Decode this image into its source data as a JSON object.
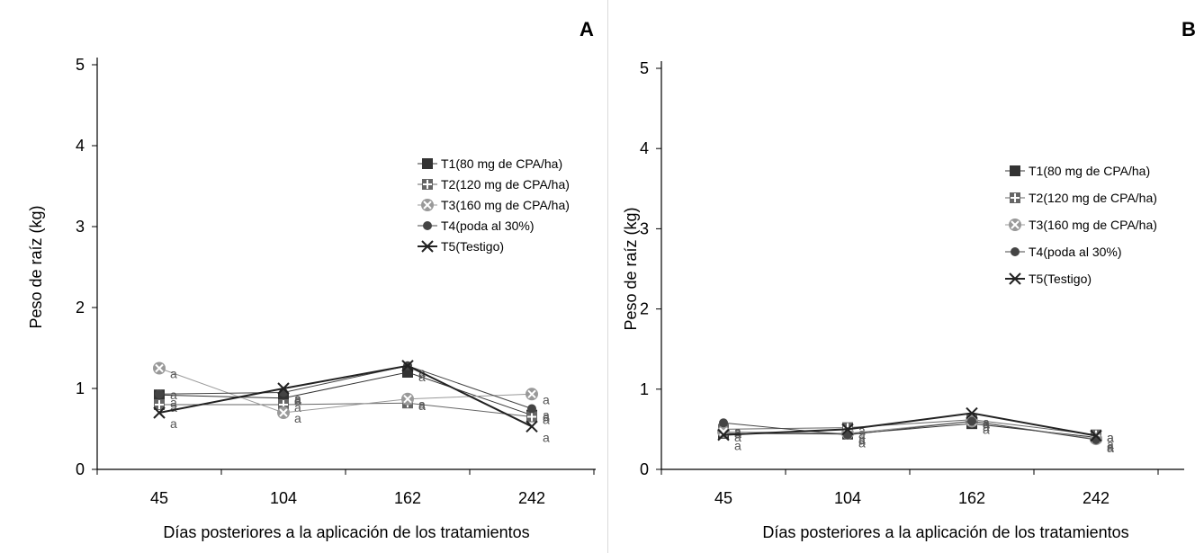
{
  "chart_data": [
    {
      "type": "line",
      "panel_label": "A",
      "xlabel": "Días posteriores a la aplicación de los tratamientos",
      "ylabel": "Peso de raíz  (kg)",
      "categories": [
        "45",
        "104",
        "162",
        "242"
      ],
      "ylim": [
        0,
        5
      ],
      "yticks": [
        "0",
        "1",
        "2",
        "3",
        "4",
        "5"
      ],
      "grid": false,
      "legend_position": "right",
      "series": [
        {
          "name": "T1(80 mg de CPA/ha)",
          "marker": "square",
          "values": [
            0.92,
            0.88,
            1.2,
            0.67
          ],
          "letters": [
            "a",
            "a",
            "a",
            "a"
          ]
        },
        {
          "name": "T2(120 mg de CPA/ha)",
          "marker": "plus-square",
          "values": [
            0.8,
            0.8,
            0.82,
            0.65
          ],
          "letters": [
            "a",
            "a",
            "a",
            "a"
          ]
        },
        {
          "name": "T3(160 mg de CPA/ha)",
          "marker": "x-circle",
          "values": [
            1.25,
            0.7,
            0.87,
            0.93
          ],
          "letters": [
            "a",
            "a",
            "a",
            "a"
          ]
        },
        {
          "name": "T4(poda al 30%)",
          "marker": "dot",
          "values": [
            0.93,
            0.95,
            1.28,
            0.75
          ],
          "letters": [
            "a",
            "a",
            "a",
            "a"
          ]
        },
        {
          "name": "T5(Testigo)",
          "marker": "cross",
          "values": [
            0.7,
            1.0,
            1.28,
            0.53
          ],
          "letters": [
            "a",
            "a",
            "a",
            "a"
          ]
        }
      ]
    },
    {
      "type": "line",
      "panel_label": "B",
      "xlabel": "Días posteriores a la aplicación de los tratamientos",
      "ylabel": "Peso de raíz (kg)",
      "categories": [
        "45",
        "104",
        "162",
        "242"
      ],
      "ylim": [
        0,
        5
      ],
      "yticks": [
        "0",
        "1",
        "2",
        "3",
        "4",
        "5"
      ],
      "grid": false,
      "legend_position": "right",
      "series": [
        {
          "name": "T1(80 mg de CPA/ha)",
          "marker": "square",
          "values": [
            0.45,
            0.44,
            0.57,
            0.4
          ],
          "letters": [
            "a",
            "a",
            "a",
            "a"
          ]
        },
        {
          "name": "T2(120 mg de CPA/ha)",
          "marker": "plus-square",
          "values": [
            0.5,
            0.52,
            0.62,
            0.43
          ],
          "letters": [
            "a",
            "a",
            "a",
            "a"
          ]
        },
        {
          "name": "T3(160 mg de CPA/ha)",
          "marker": "x-circle",
          "values": [
            0.47,
            0.45,
            0.6,
            0.38
          ],
          "letters": [
            "a",
            "a",
            "a",
            "a"
          ]
        },
        {
          "name": "T4(poda al 30%)",
          "marker": "dot",
          "values": [
            0.58,
            0.43,
            0.6,
            0.37
          ],
          "letters": [
            "a",
            "a",
            "a",
            "a"
          ]
        },
        {
          "name": "T5(Testigo)",
          "marker": "cross",
          "values": [
            0.43,
            0.5,
            0.7,
            0.42
          ],
          "letters": [
            "a",
            "a",
            "a",
            "a"
          ]
        }
      ]
    }
  ],
  "colors": {
    "T1": "#333333",
    "T2": "#666666",
    "T3": "#999999",
    "T4": "#444444",
    "T5": "#222222",
    "axis": "#000000"
  }
}
